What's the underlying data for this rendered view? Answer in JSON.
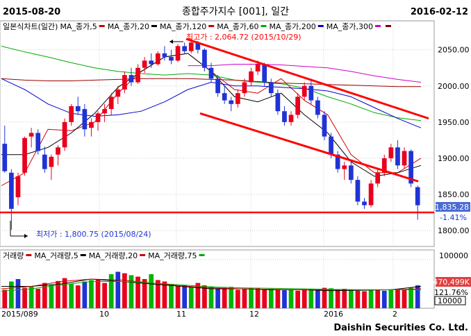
{
  "header": {
    "start_date": "2015-08-20",
    "title": "종합주가지수 [001], 일간",
    "end_date": "2016-02-12"
  },
  "price_legend": [
    {
      "text": "일본식차트(일간)",
      "color": "#000000",
      "swatch": null
    },
    {
      "text": "MA_종가,5",
      "color": "#000000",
      "swatch": "#cc0000"
    },
    {
      "text": "MA_종가,20",
      "color": "#000000",
      "swatch": "#000000"
    },
    {
      "text": "MA_종가,120",
      "color": "#000000",
      "swatch": "#cc0000"
    },
    {
      "text": "MA_종가,60",
      "color": "#000000",
      "swatch": "#00aa00"
    },
    {
      "text": "MA_종가,200",
      "color": "#000000",
      "swatch": "#0000cc"
    },
    {
      "text": "MA_종가,300",
      "color": "#000000",
      "swatch": "#cc00cc"
    },
    {
      "text": "",
      "color": "#000000",
      "swatch": "#800000"
    }
  ],
  "volume_legend": [
    {
      "text": "거래량",
      "swatch": "#cc0000"
    },
    {
      "text": "MA_거래량,5",
      "swatch": "#000000"
    },
    {
      "text": "MA_거래량,20",
      "swatch": "#cc0000"
    },
    {
      "text": "MA_거래량,75",
      "swatch": "#00aa00"
    }
  ],
  "annotations": {
    "high": "최고가 : 2,064.72 (2015/10/29)",
    "low": "최저가 : 1,800.75 (2015/08/24)"
  },
  "last_price": {
    "value": "1,835.28",
    "change": "-1.41%"
  },
  "last_volume": {
    "value": "470,499K",
    "ratio": "121.76%",
    "unit": "10000"
  },
  "footer": {
    "brand": "Daishin Securities Co. Ltd."
  },
  "colors": {
    "up": "#e8001c",
    "down": "#1f33d6",
    "trendline": "#ff0000",
    "grid": "#cfcfcf"
  },
  "chart_data": [
    {
      "type": "candlestick",
      "title": "종합주가지수 [001], 일간",
      "x_ticks": [
        "2015/08",
        "10",
        "11",
        "12",
        "2016",
        "2"
      ],
      "y_ticks": [
        1800,
        1850,
        1900,
        1950,
        2000,
        2050
      ],
      "ylim": [
        1778,
        2090
      ],
      "high": 2064.72,
      "low": 1800.75,
      "last_close": 1835.28,
      "last_change_pct": -1.41,
      "support_line": 1825,
      "trendlines": [
        {
          "from": [
            "2015/10/29",
            2065
          ],
          "to": [
            "2016/02/15",
            1955
          ]
        },
        {
          "from": [
            "2015/11/23",
            1962
          ],
          "to": [
            "2016/02/12",
            1868
          ]
        }
      ],
      "series": [
        {
          "name": "MA_종가,5",
          "values": [
            1862,
            1880,
            1940,
            1938,
            1950,
            1990,
            2020,
            2040,
            2045,
            2020,
            1995,
            1990,
            2010,
            1980,
            1960,
            1905,
            1880,
            1880,
            1900
          ]
        },
        {
          "name": "MA_종가,20",
          "values": [
            1905,
            1905,
            1915,
            1935,
            1962,
            1998,
            2020,
            2040,
            2045,
            2020,
            1985,
            1978,
            1990,
            1960,
            1935,
            1895,
            1875,
            1880,
            1890
          ]
        },
        {
          "name": "MA_종가,60",
          "values": [
            2055,
            2047,
            2040,
            2032,
            2025,
            2020,
            2017,
            2015,
            2017,
            2015,
            2008,
            2005,
            2003,
            1997,
            1985,
            1975,
            1963,
            1956,
            1952
          ]
        },
        {
          "name": "MA_종가,120",
          "values": [
            2010,
            2008,
            2007,
            2007,
            2008,
            2009,
            2010,
            2010,
            2010,
            2009,
            2008,
            2006,
            2004,
            2003,
            2002,
            2001,
            2000,
            1999,
            1999
          ]
        },
        {
          "name": "MA_종가,200",
          "values": [
            2010,
            1995,
            1975,
            1962,
            1958,
            1960,
            1965,
            1978,
            1995,
            2005,
            2000,
            2000,
            1998,
            1996,
            1993,
            1985,
            1970,
            1955,
            1942
          ]
        },
        {
          "name": "MA_종가,300",
          "values": [
            null,
            null,
            null,
            null,
            null,
            null,
            null,
            null,
            2028,
            2028,
            2030,
            2030,
            2029,
            2027,
            2025,
            2020,
            2014,
            2009,
            2005
          ]
        }
      ],
      "candles": [
        {
          "o": 1920,
          "h": 1945,
          "l": 1880,
          "c": 1882
        },
        {
          "o": 1880,
          "h": 1885,
          "l": 1801,
          "c": 1830
        },
        {
          "o": 1846,
          "h": 1880,
          "l": 1835,
          "c": 1875
        },
        {
          "o": 1880,
          "h": 1930,
          "l": 1876,
          "c": 1928
        },
        {
          "o": 1930,
          "h": 1942,
          "l": 1915,
          "c": 1935
        },
        {
          "o": 1935,
          "h": 1940,
          "l": 1905,
          "c": 1910
        },
        {
          "o": 1905,
          "h": 1916,
          "l": 1880,
          "c": 1885
        },
        {
          "o": 1888,
          "h": 1905,
          "l": 1870,
          "c": 1902
        },
        {
          "o": 1905,
          "h": 1918,
          "l": 1890,
          "c": 1915
        },
        {
          "o": 1915,
          "h": 1955,
          "l": 1910,
          "c": 1950
        },
        {
          "o": 1950,
          "h": 1975,
          "l": 1945,
          "c": 1972
        },
        {
          "o": 1972,
          "h": 1985,
          "l": 1960,
          "c": 1965
        },
        {
          "o": 1968,
          "h": 1975,
          "l": 1930,
          "c": 1940
        },
        {
          "o": 1942,
          "h": 1955,
          "l": 1930,
          "c": 1950
        },
        {
          "o": 1950,
          "h": 1965,
          "l": 1938,
          "c": 1962
        },
        {
          "o": 1962,
          "h": 1975,
          "l": 1950,
          "c": 1968
        },
        {
          "o": 1968,
          "h": 1990,
          "l": 1960,
          "c": 1985
        },
        {
          "o": 1985,
          "h": 2000,
          "l": 1975,
          "c": 1995
        },
        {
          "o": 1995,
          "h": 2020,
          "l": 1990,
          "c": 2015
        },
        {
          "o": 2015,
          "h": 2025,
          "l": 2000,
          "c": 2005
        },
        {
          "o": 2005,
          "h": 2030,
          "l": 2003,
          "c": 2025
        },
        {
          "o": 2025,
          "h": 2040,
          "l": 2018,
          "c": 2035
        },
        {
          "o": 2035,
          "h": 2045,
          "l": 2025,
          "c": 2030
        },
        {
          "o": 2030,
          "h": 2048,
          "l": 2028,
          "c": 2045
        },
        {
          "o": 2045,
          "h": 2055,
          "l": 2035,
          "c": 2040
        },
        {
          "o": 2040,
          "h": 2050,
          "l": 2030,
          "c": 2035
        },
        {
          "o": 2035,
          "h": 2058,
          "l": 2033,
          "c": 2055
        },
        {
          "o": 2055,
          "h": 2060,
          "l": 2045,
          "c": 2048
        },
        {
          "o": 2048,
          "h": 2065,
          "l": 2045,
          "c": 2060
        },
        {
          "o": 2060,
          "h": 2062,
          "l": 2045,
          "c": 2050
        },
        {
          "o": 2050,
          "h": 2052,
          "l": 2020,
          "c": 2025
        },
        {
          "o": 2025,
          "h": 2032,
          "l": 2005,
          "c": 2010
        },
        {
          "o": 2010,
          "h": 2015,
          "l": 1985,
          "c": 1990
        },
        {
          "o": 1990,
          "h": 2000,
          "l": 1975,
          "c": 1980
        },
        {
          "o": 1980,
          "h": 1985,
          "l": 1965,
          "c": 1975
        },
        {
          "o": 1975,
          "h": 1995,
          "l": 1970,
          "c": 1990
        },
        {
          "o": 1990,
          "h": 2010,
          "l": 1985,
          "c": 2005
        },
        {
          "o": 2005,
          "h": 2025,
          "l": 2000,
          "c": 2020
        },
        {
          "o": 2020,
          "h": 2035,
          "l": 2015,
          "c": 2030
        },
        {
          "o": 2030,
          "h": 2032,
          "l": 2000,
          "c": 2005
        },
        {
          "o": 2005,
          "h": 2010,
          "l": 1985,
          "c": 1990
        },
        {
          "o": 1990,
          "h": 1995,
          "l": 1960,
          "c": 1965
        },
        {
          "o": 1965,
          "h": 1972,
          "l": 1945,
          "c": 1950
        },
        {
          "o": 1950,
          "h": 1965,
          "l": 1945,
          "c": 1960
        },
        {
          "o": 1960,
          "h": 1990,
          "l": 1955,
          "c": 1985
        },
        {
          "o": 1985,
          "h": 2005,
          "l": 1980,
          "c": 2000
        },
        {
          "o": 2000,
          "h": 2010,
          "l": 1975,
          "c": 1980
        },
        {
          "o": 1980,
          "h": 1985,
          "l": 1955,
          "c": 1960
        },
        {
          "o": 1960,
          "h": 1965,
          "l": 1925,
          "c": 1930
        },
        {
          "o": 1930,
          "h": 1935,
          "l": 1900,
          "c": 1905
        },
        {
          "o": 1905,
          "h": 1910,
          "l": 1880,
          "c": 1885
        },
        {
          "o": 1885,
          "h": 1895,
          "l": 1870,
          "c": 1890
        },
        {
          "o": 1890,
          "h": 1895,
          "l": 1865,
          "c": 1870
        },
        {
          "o": 1870,
          "h": 1875,
          "l": 1835,
          "c": 1840
        },
        {
          "o": 1840,
          "h": 1845,
          "l": 1830,
          "c": 1835
        },
        {
          "o": 1835,
          "h": 1870,
          "l": 1832,
          "c": 1865
        },
        {
          "o": 1865,
          "h": 1885,
          "l": 1860,
          "c": 1880
        },
        {
          "o": 1880,
          "h": 1905,
          "l": 1875,
          "c": 1900
        },
        {
          "o": 1900,
          "h": 1920,
          "l": 1895,
          "c": 1915
        },
        {
          "o": 1915,
          "h": 1925,
          "l": 1885,
          "c": 1890
        },
        {
          "o": 1890,
          "h": 1915,
          "l": 1885,
          "c": 1910
        },
        {
          "o": 1910,
          "h": 1912,
          "l": 1860,
          "c": 1865
        },
        {
          "o": 1860,
          "h": 1862,
          "l": 1815,
          "c": 1835
        }
      ]
    },
    {
      "type": "bar",
      "title": "거래량",
      "y_ticks": [
        100000
      ],
      "unit": "10000",
      "last_value": "470,499K",
      "last_ratio_pct": 121.76,
      "x_ticks": [
        "2015/089",
        "10",
        "11",
        "12",
        "2016",
        "2"
      ],
      "ylim": [
        0,
        120000
      ],
      "values": [
        38000,
        55000,
        60000,
        42000,
        45000,
        40000,
        52000,
        48000,
        56000,
        62000,
        50000,
        47000,
        55000,
        58000,
        60000,
        52000,
        70000,
        75000,
        72000,
        68000,
        65000,
        60000,
        70000,
        58000,
        55000,
        50000,
        45000,
        48000,
        43000,
        52000,
        47000,
        45000,
        40000,
        42000,
        44000,
        38000,
        40000,
        42000,
        41000,
        39000,
        40000,
        38000,
        37000,
        38000,
        36000,
        39000,
        40000,
        38000,
        42000,
        41000,
        39000,
        40000,
        38000,
        36000,
        35000,
        37000,
        38000,
        36000,
        39000,
        40000,
        38000,
        42000,
        47050
      ],
      "series": [
        {
          "name": "MA_거래량,5",
          "values": [
            45000,
            45000,
            50000,
            60000,
            55000,
            50000,
            45000,
            40000,
            40000,
            38000,
            38000,
            36000,
            37000,
            38000,
            45000
          ]
        },
        {
          "name": "MA_거래량,20",
          "values": [
            40000,
            45000,
            55000,
            60000,
            58000,
            52000,
            46000,
            42000,
            40000,
            39000,
            38000,
            38000,
            38000,
            38000,
            40000
          ]
        },
        {
          "name": "MA_거래량,75",
          "values": [
            35000,
            40000,
            48000,
            55000,
            55000,
            52000,
            48000,
            44000,
            42000,
            41000,
            40000,
            39000,
            38000,
            38000,
            38000
          ]
        }
      ]
    }
  ]
}
